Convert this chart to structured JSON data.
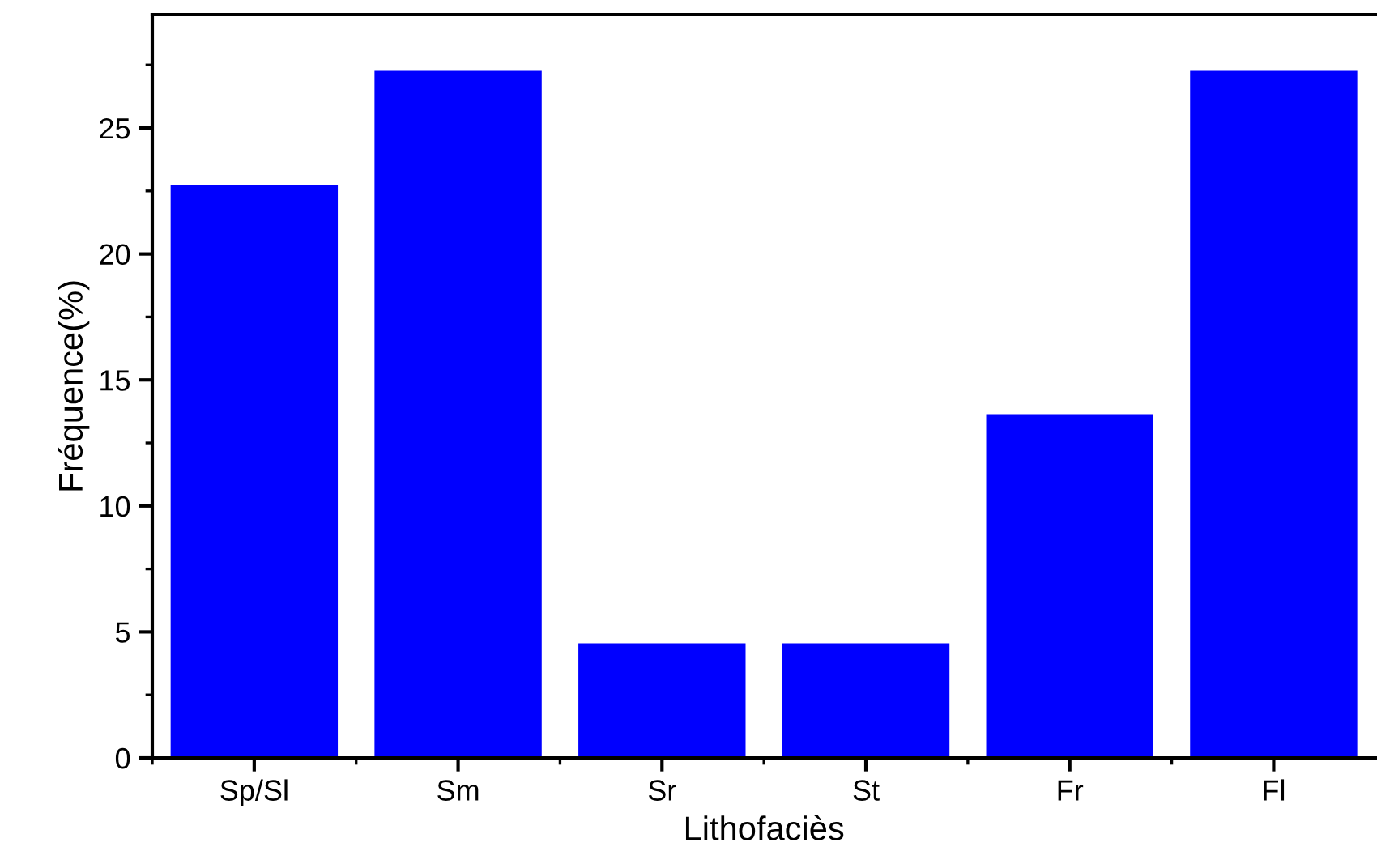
{
  "chart_data": {
    "type": "bar",
    "xlabel": "Lithofaciès",
    "ylabel": "Fréquence(%)",
    "categories": [
      "Sp/Sl",
      "Sm",
      "Sr",
      "St",
      "Fr",
      "Fl"
    ],
    "values": [
      22.73,
      27.27,
      4.55,
      4.55,
      13.64,
      27.27
    ],
    "color": "#0000ff",
    "ylim": [
      0,
      29.5
    ],
    "yticks": [
      0,
      5,
      10,
      15,
      20,
      25
    ],
    "grid": false,
    "legend": false
  }
}
